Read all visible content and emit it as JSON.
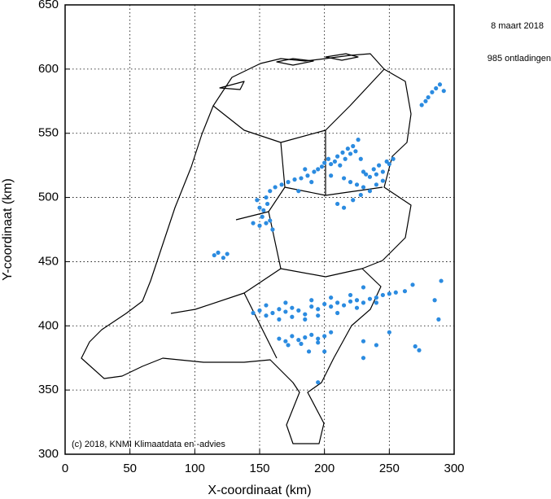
{
  "chart_data": {
    "type": "scatter",
    "date_label": "8 maart 2018",
    "count_label": "985 ontladingen",
    "credit": "(c) 2018, KNMI Klimaatdata en -advies",
    "x_label": "X-coordinaat (km)",
    "y_label": "Y-coordinaat (km)",
    "xlim": [
      0,
      300
    ],
    "ylim": [
      300,
      650
    ],
    "xticks": [
      0,
      50,
      100,
      150,
      200,
      250,
      300
    ],
    "yticks": [
      300,
      350,
      400,
      450,
      500,
      550,
      600,
      650
    ],
    "grid": true,
    "color": "#2b8be0",
    "x": [
      155,
      158,
      162,
      167,
      172,
      177,
      182,
      187,
      192,
      195,
      198,
      200,
      203,
      205,
      208,
      210,
      212,
      214,
      216,
      218,
      220,
      222,
      224,
      226,
      228,
      230,
      232,
      235,
      238,
      240,
      242,
      245,
      248,
      250,
      253,
      215,
      220,
      225,
      230,
      235,
      240,
      245,
      228,
      222,
      215,
      210,
      180,
      190,
      205,
      185,
      148,
      150,
      152,
      155,
      150,
      158,
      145,
      153,
      160,
      156,
      115,
      118,
      122,
      125,
      145,
      150,
      155,
      160,
      165,
      170,
      175,
      180,
      185,
      190,
      195,
      200,
      205,
      210,
      215,
      220,
      225,
      230,
      235,
      240,
      245,
      250,
      255,
      165,
      175,
      185,
      195,
      210,
      225,
      240,
      155,
      170,
      190,
      205,
      220,
      230,
      262,
      268,
      290,
      285,
      165,
      170,
      175,
      180,
      185,
      190,
      195,
      200,
      205,
      172,
      182,
      195,
      188,
      200,
      195,
      230,
      240,
      270,
      273,
      288,
      250,
      230,
      275,
      280,
      283,
      286,
      289,
      292,
      278
    ],
    "y": [
      500,
      505,
      508,
      510,
      512,
      514,
      515,
      517,
      520,
      522,
      524,
      527,
      530,
      526,
      528,
      532,
      525,
      535,
      530,
      538,
      534,
      540,
      536,
      545,
      530,
      520,
      518,
      516,
      522,
      518,
      525,
      520,
      528,
      526,
      530,
      515,
      512,
      510,
      508,
      505,
      510,
      513,
      502,
      498,
      492,
      495,
      505,
      512,
      517,
      522,
      498,
      492,
      485,
      480,
      478,
      482,
      480,
      490,
      475,
      495,
      455,
      457,
      453,
      456,
      410,
      412,
      408,
      410,
      413,
      411,
      414,
      412,
      409,
      415,
      413,
      417,
      415,
      418,
      416,
      419,
      420,
      418,
      421,
      422,
      424,
      425,
      426,
      405,
      407,
      405,
      408,
      410,
      414,
      418,
      416,
      418,
      420,
      422,
      424,
      430,
      427,
      432,
      435,
      420,
      390,
      388,
      392,
      389,
      391,
      393,
      390,
      392,
      395,
      385,
      386,
      387,
      380,
      380,
      356,
      388,
      385,
      384,
      381,
      405,
      395,
      375,
      572,
      578,
      582,
      585,
      588,
      583,
      575
    ]
  }
}
